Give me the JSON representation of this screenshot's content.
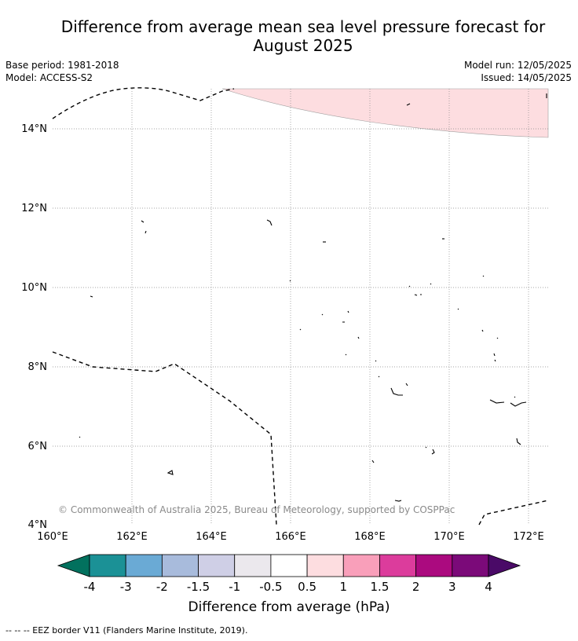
{
  "title_line1": "Difference from average mean sea level pressure forecast for",
  "title_line2": "August 2025",
  "base_period": "Base period: 1981-2018",
  "model": "Model: ACCESS-S2",
  "model_run": "Model run: 12/05/2025",
  "issued": "Issued: 14/05/2025",
  "copyright": "© Commonwealth of Australia 2025, Bureau of Meteorology, supported by COSPPac",
  "lon_ticks": [
    "160°E",
    "162°E",
    "164°E",
    "166°E",
    "168°E",
    "170°E",
    "172°E"
  ],
  "lat_ticks": [
    "4°N",
    "6°N",
    "8°N",
    "10°N",
    "12°N",
    "14°N"
  ],
  "colorbar": {
    "labels": [
      "-4",
      "-3",
      "-2",
      "-1.5",
      "-1",
      "-0.5",
      "0.5",
      "1",
      "1.5",
      "2",
      "3",
      "4"
    ],
    "colors": [
      "#1b9196",
      "#6aaad5",
      "#a8bbdc",
      "#cfcfe6",
      "#ebe8ed",
      "#ffffff",
      "#fddde0",
      "#f99fba",
      "#dc3c9c",
      "#ab0a7f",
      "#7b0a79"
    ],
    "under_color": "#02715e",
    "over_color": "#4a0a67",
    "label": "Difference from average (hPa)"
  },
  "anomaly_fill_color": "#fddde0",
  "legend_line": "--  --  -- EEZ border V11 (Flanders Marine Institute, 2019)."
}
